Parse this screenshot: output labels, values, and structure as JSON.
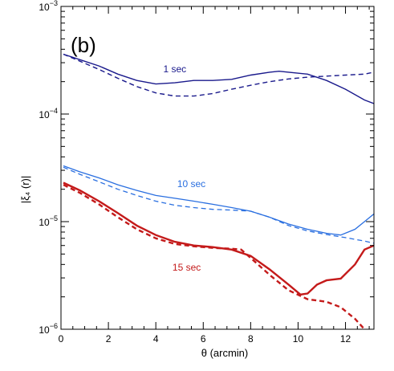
{
  "chart_data": {
    "type": "line",
    "panel_label": "(b)",
    "xlabel": "θ (arcmin)",
    "ylabel": "|ξ₄ (r)|",
    "xlim": [
      0,
      13.2
    ],
    "ylim": [
      1e-06,
      0.001
    ],
    "yscale": "log",
    "x_ticks": [
      0,
      2,
      4,
      6,
      8,
      10,
      12
    ],
    "x_tick_labels": [
      "0",
      "2",
      "4",
      "6",
      "8",
      "10",
      "12"
    ],
    "y_ticks": [
      1e-06,
      1e-05,
      0.0001,
      0.001
    ],
    "y_tick_labels": [
      {
        "base": "10",
        "exp": "−6"
      },
      {
        "base": "10",
        "exp": "−5"
      },
      {
        "base": "10",
        "exp": "−4"
      },
      {
        "base": "10",
        "exp": "−3"
      }
    ],
    "grid": false,
    "series": [
      {
        "label": "1 sec",
        "label_at": [
          4.8,
          0.000245
        ],
        "color": "#1a1a8c",
        "width": 1.4,
        "solid": {
          "x": [
            0.1,
            0.8,
            1.6,
            2.4,
            3.2,
            4.0,
            4.8,
            5.6,
            6.4,
            7.2,
            8.0,
            8.8,
            9.2,
            9.6,
            10.4,
            11.2,
            12.0,
            12.8,
            13.2
          ],
          "y": [
            0.00036,
            0.00032,
            0.00028,
            0.000235,
            0.000205,
            0.00019,
            0.000195,
            0.000205,
            0.000205,
            0.00021,
            0.00023,
            0.000245,
            0.00025,
            0.000245,
            0.000235,
            0.000205,
            0.00017,
            0.000135,
            0.000125
          ]
        },
        "dashed": {
          "x": [
            0.1,
            0.8,
            1.6,
            2.4,
            3.2,
            4.0,
            4.8,
            5.6,
            6.4,
            7.2,
            8.0,
            8.8,
            9.6,
            10.4,
            11.2,
            12.0,
            12.8,
            13.2
          ],
          "y": [
            0.00036,
            0.00031,
            0.00026,
            0.000215,
            0.00018,
            0.000157,
            0.000147,
            0.000147,
            0.000155,
            0.00017,
            0.000185,
            0.0002,
            0.000212,
            0.00022,
            0.000225,
            0.00023,
            0.000235,
            0.000245
          ]
        }
      },
      {
        "label": "10 sec",
        "label_at": [
          5.5,
          2.1e-05
        ],
        "color": "#2a6fe0",
        "width": 1.3,
        "solid": {
          "x": [
            0.1,
            0.8,
            1.6,
            2.4,
            3.2,
            4.0,
            4.8,
            5.6,
            6.4,
            7.2,
            8.0,
            8.8,
            9.6,
            10.4,
            11.2,
            11.8,
            12.4,
            12.8,
            13.2
          ],
          "y": [
            3.3e-05,
            2.9e-05,
            2.55e-05,
            2.2e-05,
            1.95e-05,
            1.75e-05,
            1.65e-05,
            1.55e-05,
            1.45e-05,
            1.35e-05,
            1.25e-05,
            1.1e-05,
            9.5e-06,
            8.5e-06,
            7.8e-06,
            7.5e-06,
            8.5e-06,
            1e-05,
            1.18e-05
          ]
        },
        "dashed": {
          "x": [
            0.1,
            0.8,
            1.6,
            2.4,
            3.2,
            4.0,
            4.8,
            5.6,
            6.4,
            7.2,
            8.0,
            8.8,
            9.6,
            10.4,
            11.2,
            12.0,
            12.8,
            13.2
          ],
          "y": [
            3.2e-05,
            2.75e-05,
            2.35e-05,
            2e-05,
            1.75e-05,
            1.55e-05,
            1.42e-05,
            1.35e-05,
            1.3e-05,
            1.28e-05,
            1.25e-05,
            1.1e-05,
            9.2e-06,
            8.2e-06,
            7.6e-06,
            7.1e-06,
            6.6e-06,
            6.3e-06
          ]
        }
      },
      {
        "label": "15 sec",
        "label_at": [
          5.3,
          3.5e-06
        ],
        "color": "#c41a1a",
        "width": 2.4,
        "solid": {
          "x": [
            0.1,
            0.8,
            1.6,
            2.4,
            3.2,
            4.0,
            4.8,
            5.6,
            6.4,
            7.2,
            8.0,
            8.8,
            9.6,
            10.1,
            10.4,
            10.8,
            11.2,
            11.8,
            12.4,
            12.8,
            13.2
          ],
          "y": [
            2.3e-05,
            1.95e-05,
            1.55e-05,
            1.2e-05,
            9.2e-06,
            7.5e-06,
            6.5e-06,
            6e-06,
            5.8e-06,
            5.5e-06,
            4.8e-06,
            3.6e-06,
            2.6e-06,
            2.1e-06,
            2.15e-06,
            2.6e-06,
            2.85e-06,
            2.95e-06,
            4e-06,
            5.5e-06,
            6e-06
          ]
        },
        "dashed": {
          "x": [
            0.1,
            0.8,
            1.6,
            2.4,
            3.2,
            4.0,
            4.8,
            5.6,
            6.4,
            7.2,
            7.6,
            8.0,
            8.8,
            9.6,
            10.4,
            11.2,
            11.8,
            12.4,
            12.8
          ],
          "y": [
            2.2e-05,
            1.85e-05,
            1.45e-05,
            1.1e-05,
            8.5e-06,
            7e-06,
            6.2e-06,
            5.9e-06,
            5.7e-06,
            5.6e-06,
            5.5e-06,
            4.6e-06,
            3.2e-06,
            2.3e-06,
            1.9e-06,
            1.8e-06,
            1.6e-06,
            1.25e-06,
            1e-06
          ]
        }
      }
    ]
  }
}
